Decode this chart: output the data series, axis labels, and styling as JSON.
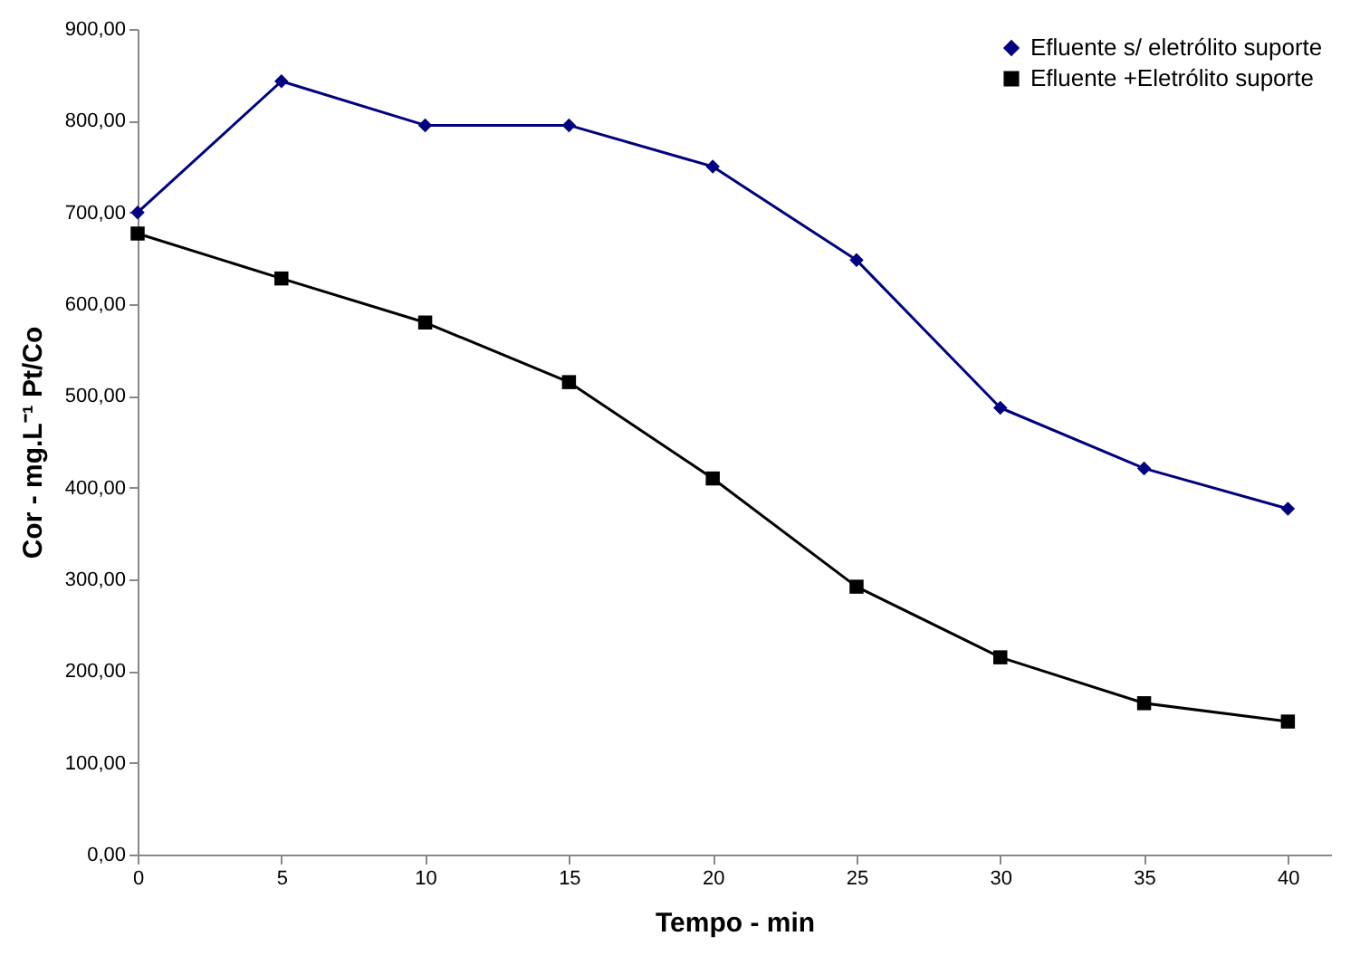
{
  "chart_data": {
    "type": "line",
    "xlabel": "Tempo - min",
    "ylabel": "Cor - mg.L⁻¹ Pt/Co",
    "x": [
      0,
      5,
      10,
      15,
      20,
      25,
      30,
      35,
      40
    ],
    "series": [
      {
        "name": "Efluente s/ eletrólito suporte",
        "color": "#000080",
        "marker": "diamond",
        "values": [
          700,
          843,
          795,
          795,
          750,
          648,
          487,
          421,
          377
        ]
      },
      {
        "name": "Efluente +Eletrólito suporte",
        "color": "#000000",
        "marker": "square",
        "values": [
          677,
          628,
          580,
          515,
          410,
          292,
          215,
          165,
          145
        ]
      }
    ],
    "xlim": [
      0,
      41.5
    ],
    "xticks": [
      0,
      5,
      10,
      15,
      20,
      25,
      30,
      35,
      40
    ],
    "ylim": [
      0,
      900
    ],
    "yticks": [
      {
        "value": 0,
        "label": "0,00"
      },
      {
        "value": 100,
        "label": "100,00"
      },
      {
        "value": 200,
        "label": "200,00"
      },
      {
        "value": 300,
        "label": "300,00"
      },
      {
        "value": 400,
        "label": "400,00"
      },
      {
        "value": 500,
        "label": "500,00"
      },
      {
        "value": 600,
        "label": "600,00"
      },
      {
        "value": 700,
        "label": "700,00"
      },
      {
        "value": 800,
        "label": "800,00"
      },
      {
        "value": 900,
        "label": "900,00"
      }
    ],
    "grid": false,
    "legend": "top right"
  }
}
